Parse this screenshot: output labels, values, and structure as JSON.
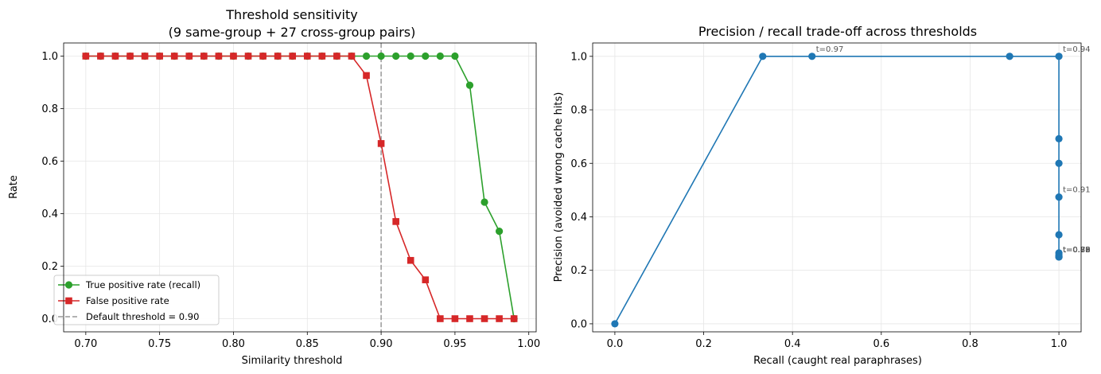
{
  "figure": {
    "background": "#ffffff",
    "grid_color": "#e6e6e6"
  },
  "chart_data": [
    {
      "type": "line",
      "title_lines": [
        "Threshold sensitivity",
        "(9 same-group + 27 cross-group pairs)"
      ],
      "xlabel": "Similarity threshold",
      "ylabel": "Rate",
      "xlim": [
        0.685,
        1.005
      ],
      "ylim": [
        -0.05,
        1.05
      ],
      "x_ticks": [
        0.7,
        0.75,
        0.8,
        0.85,
        0.9,
        0.95,
        1.0
      ],
      "x_tick_labels": [
        "0.70",
        "0.75",
        "0.80",
        "0.85",
        "0.90",
        "0.95",
        "1.00"
      ],
      "y_ticks": [
        0.0,
        0.2,
        0.4,
        0.6,
        0.8,
        1.0
      ],
      "y_tick_labels": [
        "0.0",
        "0.2",
        "0.4",
        "0.6",
        "0.8",
        "1.0"
      ],
      "grid": true,
      "legend_position": "lower-left",
      "x": [
        0.7,
        0.71,
        0.72,
        0.73,
        0.74,
        0.75,
        0.76,
        0.77,
        0.78,
        0.79,
        0.8,
        0.81,
        0.82,
        0.83,
        0.84,
        0.85,
        0.86,
        0.87,
        0.88,
        0.89,
        0.9,
        0.91,
        0.92,
        0.93,
        0.94,
        0.95,
        0.96,
        0.97,
        0.98,
        0.99
      ],
      "series": [
        {
          "name": "True positive rate (recall)",
          "color": "#2ca02c",
          "marker": "circle",
          "values": [
            1,
            1,
            1,
            1,
            1,
            1,
            1,
            1,
            1,
            1,
            1,
            1,
            1,
            1,
            1,
            1,
            1,
            1,
            1,
            1,
            1,
            1,
            1,
            1,
            1,
            1,
            0.889,
            0.444,
            0.333,
            0
          ]
        },
        {
          "name": "False positive rate",
          "color": "#d62728",
          "marker": "square",
          "values": [
            1,
            1,
            1,
            1,
            1,
            1,
            1,
            1,
            1,
            1,
            1,
            1,
            1,
            1,
            1,
            1,
            1,
            1,
            1,
            0.926,
            0.667,
            0.37,
            0.222,
            0.148,
            0,
            0,
            0,
            0,
            0,
            0
          ]
        }
      ],
      "reference_line": {
        "x": 0.9,
        "label": "Default threshold = 0.90",
        "color": "#999999",
        "style": "dashed"
      }
    },
    {
      "type": "line",
      "title": "Precision / recall trade-off across thresholds",
      "xlabel": "Recall (caught real paraphrases)",
      "ylabel": "Precision (avoided wrong cache hits)",
      "xlim": [
        -0.05,
        1.05
      ],
      "ylim": [
        -0.03,
        1.05
      ],
      "x_ticks": [
        0.0,
        0.2,
        0.4,
        0.6,
        0.8,
        1.0
      ],
      "x_tick_labels": [
        "0.0",
        "0.2",
        "0.4",
        "0.6",
        "0.8",
        "1.0"
      ],
      "y_ticks": [
        0.0,
        0.2,
        0.4,
        0.6,
        0.8,
        1.0
      ],
      "y_tick_labels": [
        "0.0",
        "0.2",
        "0.4",
        "0.6",
        "0.8",
        "1.0"
      ],
      "grid": true,
      "series": [
        {
          "color": "#1f77b4",
          "marker": "circle",
          "points": [
            {
              "x": 0.0,
              "y": 0.0
            },
            {
              "x": 0.333,
              "y": 1.0
            },
            {
              "x": 0.444,
              "y": 1.0
            },
            {
              "x": 0.889,
              "y": 1.0
            },
            {
              "x": 1.0,
              "y": 1.0
            },
            {
              "x": 1.0,
              "y": 0.692
            },
            {
              "x": 1.0,
              "y": 0.6
            },
            {
              "x": 1.0,
              "y": 0.474
            },
            {
              "x": 1.0,
              "y": 0.333
            },
            {
              "x": 1.0,
              "y": 0.265
            },
            {
              "x": 1.0,
              "y": 0.257
            },
            {
              "x": 1.0,
              "y": 0.25
            },
            {
              "x": 1.0,
              "y": 0.25
            },
            {
              "x": 1.0,
              "y": 0.25
            }
          ]
        }
      ],
      "annotations": [
        {
          "text": "t=0.97",
          "x": 0.444,
          "y": 1.0
        },
        {
          "text": "t=0.94",
          "x": 1.0,
          "y": 1.0
        },
        {
          "text": "t=0.91",
          "x": 1.0,
          "y": 0.474
        },
        {
          "text": "t=0.88",
          "x": 1.0,
          "y": 0.25
        },
        {
          "text": "t=0.85",
          "x": 1.0,
          "y": 0.25
        },
        {
          "text": "t=0.82",
          "x": 1.0,
          "y": 0.25
        },
        {
          "text": "t=0.79",
          "x": 1.0,
          "y": 0.25
        },
        {
          "text": "t=0.76",
          "x": 1.0,
          "y": 0.25
        },
        {
          "text": "t=0.73",
          "x": 1.0,
          "y": 0.25
        },
        {
          "text": "t=0.70",
          "x": 1.0,
          "y": 0.25
        }
      ],
      "annotation_color": "#555555"
    }
  ]
}
